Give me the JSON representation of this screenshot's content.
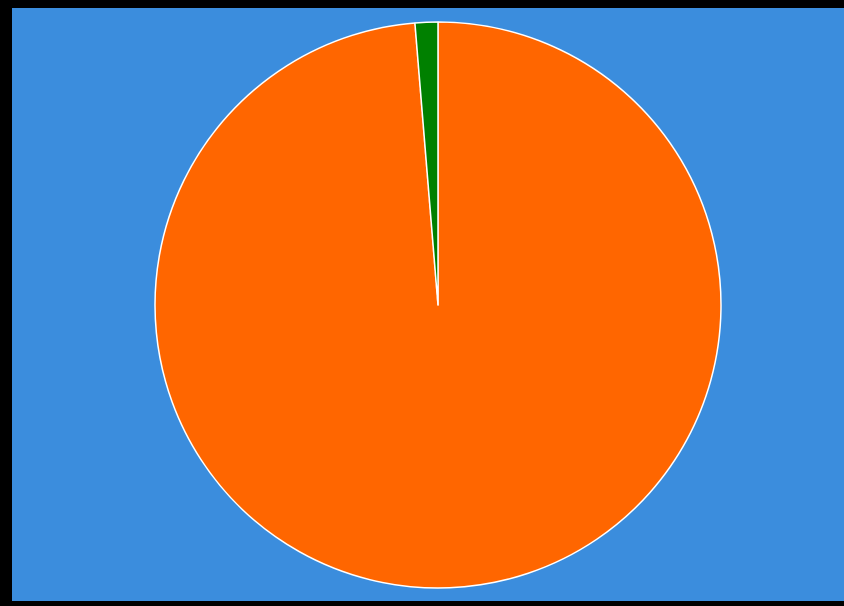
{
  "chart_data": {
    "type": "pie",
    "values": [
      98.7,
      1.3
    ],
    "colors": [
      "#ff6600",
      "#008000"
    ],
    "slice_border_color": "#ffffff",
    "start_angle": 0,
    "direction": "clockwise"
  }
}
